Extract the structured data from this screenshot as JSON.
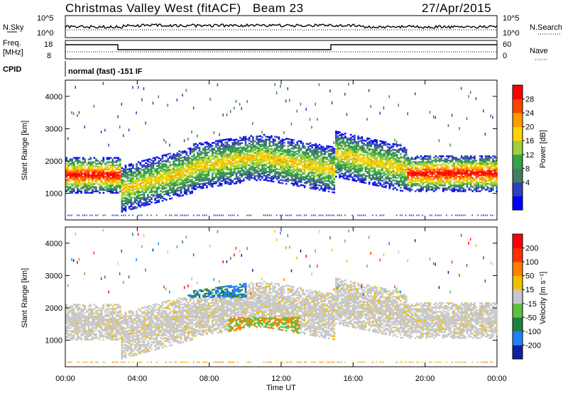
{
  "header": {
    "station": "Christmas Valley West (fitACF)",
    "beam": "Beam 23",
    "date": "27/Apr/2015"
  },
  "top_panels": {
    "nsky_label": "N.Sky",
    "nsky_ticks": [
      "10^5",
      "10^0"
    ],
    "nsearch_label": "N.Search",
    "nsearch_ticks": [
      "10^5",
      "10^0"
    ],
    "freq_label": "Freq.",
    "freq_unit": "[MHz]",
    "freq_ticks": [
      "18",
      "8"
    ],
    "nave_label": "Nave",
    "nave_ticks": [
      "60",
      "0"
    ],
    "cpid_label": "CPID",
    "cpid_text": "normal (fast) -151 IF"
  },
  "chart_data": [
    {
      "type": "heatmap",
      "name": "power",
      "ylabel": "Slant Range [km]",
      "ylim": [
        180,
        4500
      ],
      "y_ticks": [
        "4000",
        "3000",
        "2000",
        "1000"
      ],
      "y_tick_values": [
        4000,
        3000,
        2000,
        1000
      ],
      "xlim": [
        0,
        24
      ],
      "colorbar_label": "Power [dB]",
      "colorbar_ticks": [
        "28",
        "24",
        "20",
        "16",
        "12",
        "8",
        "4"
      ],
      "colorbar_values": [
        28,
        24,
        20,
        16,
        12,
        8,
        4
      ],
      "colorbar_colors": [
        "#0000ff",
        "#2e3fbf",
        "#3f7f5f",
        "#33a34a",
        "#9fcf3a",
        "#ffd400",
        "#ff9a00",
        "#ff4400",
        "#ff0000"
      ]
    },
    {
      "type": "heatmap",
      "name": "velocity",
      "ylabel": "Slant Range [km]",
      "ylim": [
        180,
        4500
      ],
      "y_ticks": [
        "4000",
        "3000",
        "2000",
        "1000"
      ],
      "y_tick_values": [
        4000,
        3000,
        2000,
        1000
      ],
      "xlim": [
        0,
        24
      ],
      "colorbar_label": "Velocity [m s⁻¹]",
      "colorbar_ticks": [
        "200",
        "100",
        "50",
        "15",
        "-15",
        "-50",
        "-100",
        "-200"
      ],
      "colorbar_values": [
        200,
        100,
        50,
        15,
        -15,
        -50,
        -100,
        -200
      ],
      "colorbar_colors": [
        "#1020a0",
        "#2080ff",
        "#1f7f3f",
        "#58c23a",
        "#c8c8c8",
        "#f0c000",
        "#ff8000",
        "#ff3000",
        "#ff0000"
      ]
    }
  ],
  "x_axis": {
    "label": "Time UT",
    "ticks": [
      "00:00",
      "04:00",
      "08:00",
      "12:00",
      "16:00",
      "20:00",
      "00:00"
    ],
    "tick_hours": [
      0,
      4,
      8,
      12,
      16,
      20,
      24
    ]
  }
}
